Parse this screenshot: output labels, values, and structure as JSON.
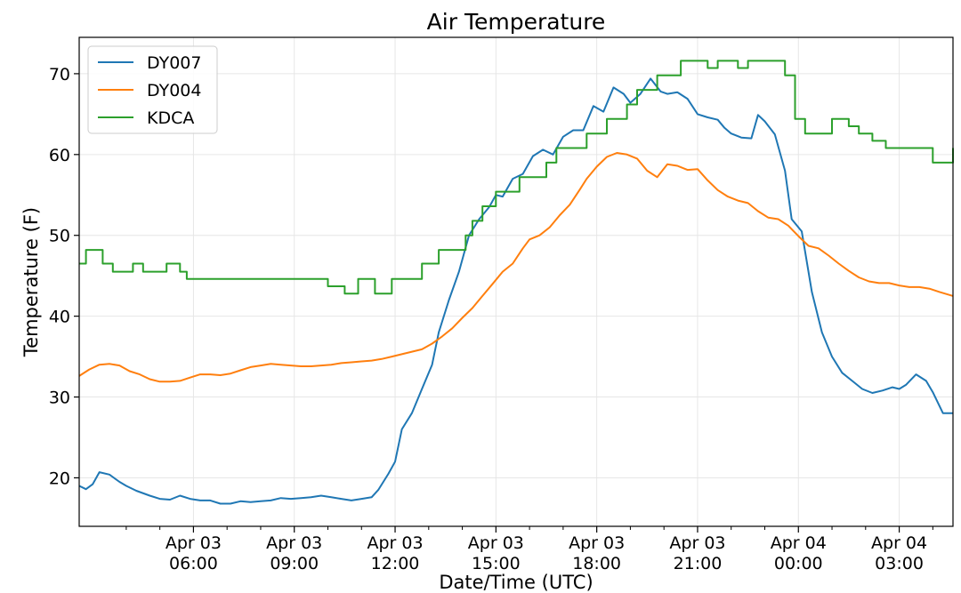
{
  "chart_data": {
    "type": "line",
    "title": "Air Temperature",
    "xlabel": "Date/Time (UTC)",
    "ylabel": "Temperature (F)",
    "x_unit": "hours since Apr 03 00:00 UTC",
    "xlim": [
      2.6,
      28.6
    ],
    "ylim": [
      14,
      74.5
    ],
    "grid": true,
    "legend_position": "upper-left",
    "y_ticks": [
      20,
      30,
      40,
      50,
      60,
      70
    ],
    "x_ticks": [
      {
        "value": 6,
        "line1": "Apr 03",
        "line2": "06:00"
      },
      {
        "value": 9,
        "line1": "Apr 03",
        "line2": "09:00"
      },
      {
        "value": 12,
        "line1": "Apr 03",
        "line2": "12:00"
      },
      {
        "value": 15,
        "line1": "Apr 03",
        "line2": "15:00"
      },
      {
        "value": 18,
        "line1": "Apr 03",
        "line2": "18:00"
      },
      {
        "value": 21,
        "line1": "Apr 03",
        "line2": "21:00"
      },
      {
        "value": 24,
        "line1": "Apr 04",
        "line2": "00:00"
      },
      {
        "value": 27,
        "line1": "Apr 04",
        "line2": "03:00"
      }
    ],
    "series": [
      {
        "name": "DY007",
        "color": "#1f77b4",
        "x": [
          2.6,
          2.8,
          3.0,
          3.2,
          3.5,
          3.8,
          4.0,
          4.3,
          4.7,
          5.0,
          5.3,
          5.6,
          5.9,
          6.2,
          6.5,
          6.8,
          7.1,
          7.4,
          7.7,
          8.0,
          8.3,
          8.6,
          8.9,
          9.2,
          9.5,
          9.8,
          10.1,
          10.4,
          10.7,
          11.0,
          11.3,
          11.5,
          11.8,
          12.0,
          12.2,
          12.5,
          12.8,
          13.1,
          13.3,
          13.6,
          13.9,
          14.2,
          14.5,
          14.8,
          15.0,
          15.2,
          15.5,
          15.8,
          16.1,
          16.4,
          16.7,
          17.0,
          17.3,
          17.6,
          17.9,
          18.2,
          18.5,
          18.8,
          19.0,
          19.3,
          19.6,
          19.9,
          20.1,
          20.4,
          20.7,
          21.0,
          21.3,
          21.6,
          21.8,
          22.0,
          22.3,
          22.6,
          22.8,
          23.0,
          23.3,
          23.6,
          23.8,
          24.1,
          24.4,
          24.7,
          25.0,
          25.3,
          25.6,
          25.9,
          26.2,
          26.5,
          26.8,
          27.0,
          27.2,
          27.5,
          27.8,
          28.0,
          28.3,
          28.6
        ],
        "values": [
          19.0,
          18.6,
          19.2,
          20.7,
          20.4,
          19.5,
          19.0,
          18.4,
          17.8,
          17.4,
          17.3,
          17.8,
          17.4,
          17.2,
          17.2,
          16.8,
          16.8,
          17.1,
          17.0,
          17.1,
          17.2,
          17.5,
          17.4,
          17.5,
          17.6,
          17.8,
          17.6,
          17.4,
          17.2,
          17.4,
          17.6,
          18.5,
          20.5,
          22.0,
          26.0,
          28.0,
          31.0,
          34.0,
          38.0,
          42.0,
          45.5,
          50.0,
          52.0,
          53.5,
          55.0,
          54.8,
          57.0,
          57.6,
          59.8,
          60.6,
          60.0,
          62.2,
          63.0,
          63.0,
          66.0,
          65.3,
          68.3,
          67.5,
          66.4,
          67.5,
          69.4,
          67.8,
          67.5,
          67.7,
          66.9,
          65.0,
          64.6,
          64.3,
          63.3,
          62.6,
          62.1,
          62.0,
          64.9,
          64.1,
          62.5,
          58.0,
          52.0,
          50.5,
          43.0,
          38.0,
          35.0,
          33.0,
          32.0,
          31.0,
          30.5,
          30.8,
          31.2,
          31.0,
          31.5,
          32.8,
          32.0,
          30.6,
          28.0,
          28.0
        ],
        "values_note": "approximate read-off values"
      },
      {
        "name": "DY004",
        "color": "#ff7f0e",
        "x": [
          2.6,
          2.9,
          3.2,
          3.5,
          3.8,
          4.1,
          4.4,
          4.7,
          5.0,
          5.3,
          5.6,
          5.9,
          6.2,
          6.5,
          6.8,
          7.1,
          7.4,
          7.7,
          8.0,
          8.3,
          8.6,
          8.9,
          9.2,
          9.5,
          9.8,
          10.1,
          10.4,
          10.7,
          11.0,
          11.3,
          11.6,
          11.9,
          12.2,
          12.5,
          12.8,
          13.1,
          13.4,
          13.7,
          14.0,
          14.3,
          14.6,
          14.9,
          15.2,
          15.5,
          15.8,
          16.0,
          16.3,
          16.6,
          16.9,
          17.2,
          17.5,
          17.7,
          18.0,
          18.3,
          18.6,
          18.9,
          19.2,
          19.5,
          19.8,
          20.1,
          20.4,
          20.7,
          21.0,
          21.3,
          21.6,
          21.9,
          22.2,
          22.5,
          22.8,
          23.1,
          23.4,
          23.7,
          24.0,
          24.3,
          24.6,
          24.9,
          25.2,
          25.5,
          25.8,
          26.1,
          26.4,
          26.7,
          27.0,
          27.3,
          27.6,
          27.9,
          28.2,
          28.6
        ],
        "values": [
          32.6,
          33.4,
          34.0,
          34.1,
          33.9,
          33.2,
          32.8,
          32.2,
          31.9,
          31.9,
          32.0,
          32.4,
          32.8,
          32.8,
          32.7,
          32.9,
          33.3,
          33.7,
          33.9,
          34.1,
          34.0,
          33.9,
          33.8,
          33.8,
          33.9,
          34.0,
          34.2,
          34.3,
          34.4,
          34.5,
          34.7,
          35.0,
          35.3,
          35.6,
          35.9,
          36.6,
          37.5,
          38.5,
          39.8,
          41.0,
          42.5,
          44.0,
          45.5,
          46.5,
          48.4,
          49.5,
          50.0,
          51.0,
          52.5,
          53.8,
          55.7,
          57.0,
          58.5,
          59.7,
          60.2,
          60.0,
          59.5,
          58.0,
          57.2,
          58.8,
          58.6,
          58.1,
          58.2,
          56.8,
          55.6,
          54.8,
          54.3,
          54.0,
          53.0,
          52.2,
          52.0,
          51.2,
          49.9,
          48.7,
          48.4,
          47.5,
          46.5,
          45.6,
          44.8,
          44.3,
          44.1,
          44.1,
          43.8,
          43.6,
          43.6,
          43.4,
          43.0,
          42.5
        ],
        "values_note": "approximate read-off values"
      },
      {
        "name": "KDCA",
        "color": "#2ca02c",
        "step": true,
        "x": [
          2.6,
          2.8,
          3.3,
          3.6,
          4.2,
          4.5,
          5.2,
          5.6,
          5.8,
          6.4,
          7.4,
          7.7,
          8.3,
          8.7,
          9.1,
          9.4,
          10.0,
          10.5,
          10.9,
          11.4,
          11.9,
          12.3,
          12.8,
          13.3,
          13.8,
          14.1,
          14.3,
          14.6,
          15.0,
          15.3,
          15.7,
          16.0,
          16.5,
          16.8,
          17.3,
          17.7,
          18.0,
          18.3,
          18.6,
          18.9,
          19.2,
          19.8,
          20.2,
          20.5,
          21.0,
          21.3,
          21.6,
          21.9,
          22.2,
          22.5,
          22.8,
          23.1,
          23.3,
          23.6,
          23.9,
          24.2,
          24.6,
          25.0,
          25.3,
          25.5,
          25.8,
          26.2,
          26.6,
          27.0,
          27.4,
          27.8,
          28.0,
          28.2,
          28.6
        ],
        "values": [
          46.5,
          48.2,
          46.5,
          45.5,
          46.5,
          45.5,
          46.5,
          45.5,
          44.6,
          44.6,
          44.6,
          44.6,
          44.6,
          44.6,
          44.6,
          44.6,
          43.7,
          42.8,
          44.6,
          42.8,
          44.6,
          44.6,
          46.5,
          48.2,
          48.2,
          50.0,
          51.8,
          53.6,
          55.4,
          55.4,
          57.2,
          57.2,
          59.0,
          60.8,
          60.8,
          62.6,
          62.6,
          64.4,
          64.4,
          66.2,
          68.0,
          69.8,
          69.8,
          71.6,
          71.6,
          70.7,
          71.6,
          71.6,
          70.7,
          71.6,
          71.6,
          71.6,
          71.6,
          69.8,
          64.4,
          62.6,
          62.6,
          64.4,
          64.4,
          63.5,
          62.6,
          61.7,
          60.8,
          60.8,
          60.8,
          60.8,
          59.0,
          59.0,
          60.8
        ],
        "values_note": "approximate read-off values"
      }
    ]
  }
}
